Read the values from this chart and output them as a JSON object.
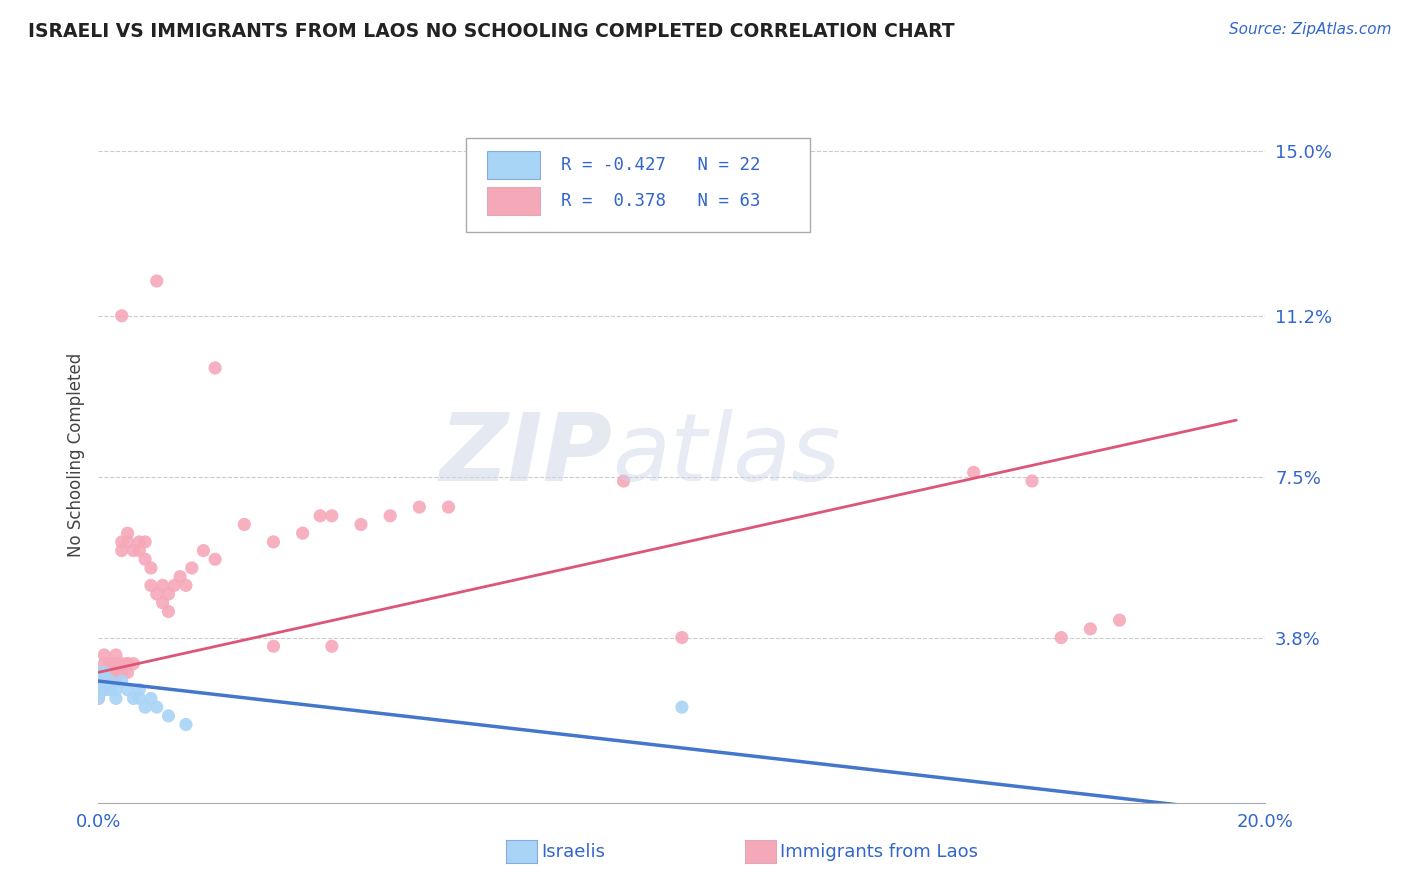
{
  "title": "ISRAELI VS IMMIGRANTS FROM LAOS NO SCHOOLING COMPLETED CORRELATION CHART",
  "source_text": "Source: ZipAtlas.com",
  "ylabel": "No Schooling Completed",
  "xlim": [
    0.0,
    0.2
  ],
  "ylim": [
    0.0,
    0.16
  ],
  "ytick_labels_right": [
    "15.0%",
    "11.2%",
    "7.5%",
    "3.8%"
  ],
  "ytick_vals_right": [
    0.15,
    0.112,
    0.075,
    0.038
  ],
  "grid_color": "#cccccc",
  "background_color": "#ffffff",
  "color_israeli": "#a8d4f5",
  "color_laos": "#f5a8b8",
  "color_israeli_line": "#4477cc",
  "color_laos_line": "#dd5577",
  "color_text": "#3366cc",
  "israeli_points": [
    [
      0.0,
      0.03
    ],
    [
      0.0,
      0.028
    ],
    [
      0.0,
      0.026
    ],
    [
      0.0,
      0.024
    ],
    [
      0.001,
      0.03
    ],
    [
      0.001,
      0.028
    ],
    [
      0.001,
      0.026
    ],
    [
      0.002,
      0.028
    ],
    [
      0.002,
      0.026
    ],
    [
      0.003,
      0.026
    ],
    [
      0.003,
      0.024
    ],
    [
      0.004,
      0.028
    ],
    [
      0.005,
      0.026
    ],
    [
      0.006,
      0.024
    ],
    [
      0.007,
      0.026
    ],
    [
      0.007,
      0.024
    ],
    [
      0.008,
      0.022
    ],
    [
      0.009,
      0.024
    ],
    [
      0.01,
      0.022
    ],
    [
      0.012,
      0.02
    ],
    [
      0.015,
      0.018
    ],
    [
      0.1,
      0.022
    ]
  ],
  "laos_points": [
    [
      0.0,
      0.03
    ],
    [
      0.0,
      0.028
    ],
    [
      0.0,
      0.026
    ],
    [
      0.0,
      0.024
    ],
    [
      0.001,
      0.034
    ],
    [
      0.001,
      0.032
    ],
    [
      0.001,
      0.03
    ],
    [
      0.001,
      0.028
    ],
    [
      0.001,
      0.026
    ],
    [
      0.002,
      0.032
    ],
    [
      0.002,
      0.03
    ],
    [
      0.002,
      0.028
    ],
    [
      0.003,
      0.034
    ],
    [
      0.003,
      0.032
    ],
    [
      0.003,
      0.03
    ],
    [
      0.003,
      0.028
    ],
    [
      0.004,
      0.06
    ],
    [
      0.004,
      0.058
    ],
    [
      0.004,
      0.032
    ],
    [
      0.004,
      0.03
    ],
    [
      0.005,
      0.062
    ],
    [
      0.005,
      0.06
    ],
    [
      0.005,
      0.032
    ],
    [
      0.005,
      0.03
    ],
    [
      0.006,
      0.058
    ],
    [
      0.006,
      0.032
    ],
    [
      0.007,
      0.06
    ],
    [
      0.007,
      0.058
    ],
    [
      0.008,
      0.06
    ],
    [
      0.008,
      0.056
    ],
    [
      0.009,
      0.054
    ],
    [
      0.009,
      0.05
    ],
    [
      0.01,
      0.048
    ],
    [
      0.011,
      0.05
    ],
    [
      0.011,
      0.046
    ],
    [
      0.012,
      0.048
    ],
    [
      0.012,
      0.044
    ],
    [
      0.013,
      0.05
    ],
    [
      0.014,
      0.052
    ],
    [
      0.015,
      0.05
    ],
    [
      0.016,
      0.054
    ],
    [
      0.018,
      0.058
    ],
    [
      0.02,
      0.056
    ],
    [
      0.025,
      0.064
    ],
    [
      0.03,
      0.06
    ],
    [
      0.035,
      0.062
    ],
    [
      0.038,
      0.066
    ],
    [
      0.04,
      0.066
    ],
    [
      0.045,
      0.064
    ],
    [
      0.05,
      0.066
    ],
    [
      0.055,
      0.068
    ],
    [
      0.06,
      0.068
    ],
    [
      0.09,
      0.074
    ],
    [
      0.01,
      0.12
    ],
    [
      0.004,
      0.112
    ],
    [
      0.02,
      0.1
    ],
    [
      0.15,
      0.076
    ],
    [
      0.16,
      0.074
    ],
    [
      0.165,
      0.038
    ],
    [
      0.17,
      0.04
    ],
    [
      0.175,
      0.042
    ],
    [
      0.005,
      0.032
    ],
    [
      0.03,
      0.036
    ],
    [
      0.04,
      0.036
    ],
    [
      0.1,
      0.038
    ]
  ],
  "israeli_line_x": [
    0.0,
    0.195
  ],
  "israeli_line_y": [
    0.028,
    -0.002
  ],
  "laos_line_x": [
    0.0,
    0.195
  ],
  "laos_line_y": [
    0.03,
    0.088
  ],
  "legend_label_israeli": "Israelis",
  "legend_label_laos": "Immigrants from Laos"
}
